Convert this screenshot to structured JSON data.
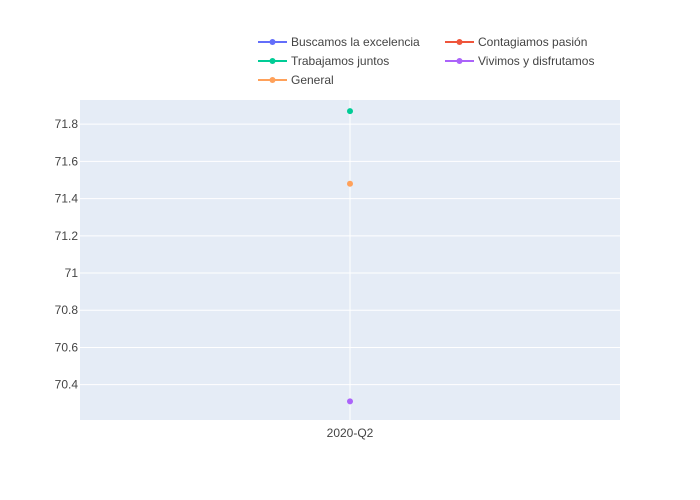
{
  "chart_data": {
    "type": "scatter",
    "categories": [
      "2020-Q2"
    ],
    "series": [
      {
        "name": "Buscamos la excelencia",
        "color": "#636efa",
        "values": [
          null
        ]
      },
      {
        "name": "Contagiamos pasión",
        "color": "#ef553b",
        "values": [
          null
        ]
      },
      {
        "name": "Trabajamos juntos",
        "color": "#00cc96",
        "values": [
          71.87
        ]
      },
      {
        "name": "Vivimos y disfrutamos",
        "color": "#ab63fa",
        "values": [
          70.31
        ]
      },
      {
        "name": "General",
        "color": "#ffa15a",
        "values": [
          71.48
        ]
      }
    ],
    "y_ticks": [
      70.4,
      70.6,
      70.8,
      71,
      71.2,
      71.4,
      71.6,
      71.8
    ],
    "y_tick_labels": [
      "70.4",
      "70.6",
      "70.8",
      "71",
      "71.2",
      "71.4",
      "71.6",
      "71.8"
    ],
    "ylim": [
      70.21,
      71.93
    ],
    "grid": true,
    "legend_position": "top-right",
    "plot_background": "#e5ecf6",
    "grid_color": "#ffffff"
  }
}
